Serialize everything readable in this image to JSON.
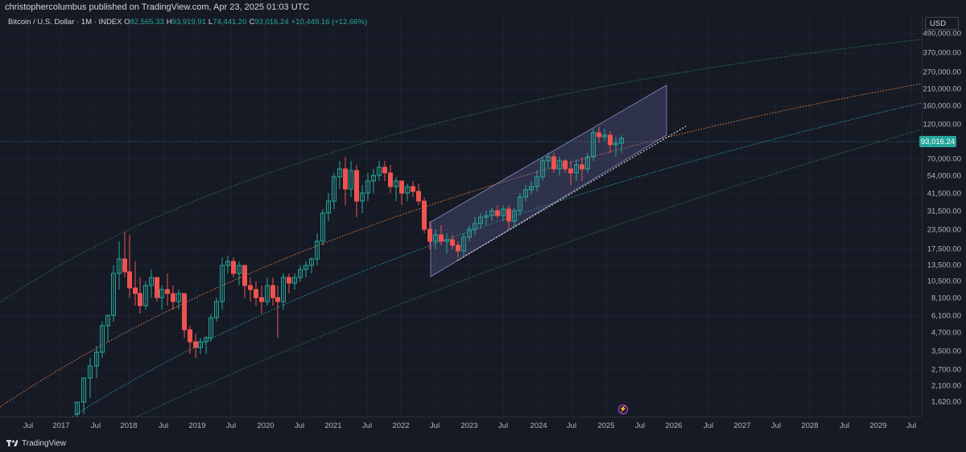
{
  "header": {
    "publish_text": "christophercolumbus published on TradingView.com, Apr 23, 2025 01:03 UTC"
  },
  "legend": {
    "symbol": "Bitcoin / U.S. Dollar · 1M · INDEX",
    "open_label": "O",
    "open": "82,565.33",
    "high_label": "H",
    "high": "93,919.91",
    "low_label": "L",
    "low": "74,441.20",
    "close_label": "C",
    "close": "93,016.24",
    "change": "+10,449.16 (+12.66%)"
  },
  "price_axis": {
    "currency": "USD",
    "ticks": [
      "490,000.00",
      "370,000.00",
      "270,000.00",
      "210,000.00",
      "160,000.00",
      "120,000.00",
      "70,000.00",
      "54,000.00",
      "41,500.00",
      "31,500.00",
      "23,500.00",
      "17,500.00",
      "13,500.00",
      "10,500.00",
      "8,100.00",
      "6,100.00",
      "4,700.00",
      "3,500.00",
      "2,700.00",
      "2,100.00",
      "1,620.00"
    ],
    "last_price": "93,016.24"
  },
  "time_axis": {
    "ticks": [
      "Jul",
      "2017",
      "Jul",
      "2018",
      "Jul",
      "2019",
      "Jul",
      "2020",
      "Jul",
      "2021",
      "Jul",
      "2022",
      "Jul",
      "2023",
      "Jul",
      "2024",
      "Jul",
      "2025",
      "Jul",
      "2026",
      "Jul",
      "2027",
      "Jul",
      "2028",
      "Jul",
      "2029",
      "Jul"
    ]
  },
  "colors": {
    "up": "#26a69a",
    "down": "#ef5350",
    "background": "#161a25",
    "band_outer": "#2e7d4f",
    "band_mid": "#e8833a",
    "band_inner": "#26a69a",
    "channel": "#5d5f8f"
  },
  "footer": {
    "brand": "TradingView"
  },
  "icons": {
    "flash": "flash-icon",
    "logo": "tradingview-logo-icon"
  }
}
